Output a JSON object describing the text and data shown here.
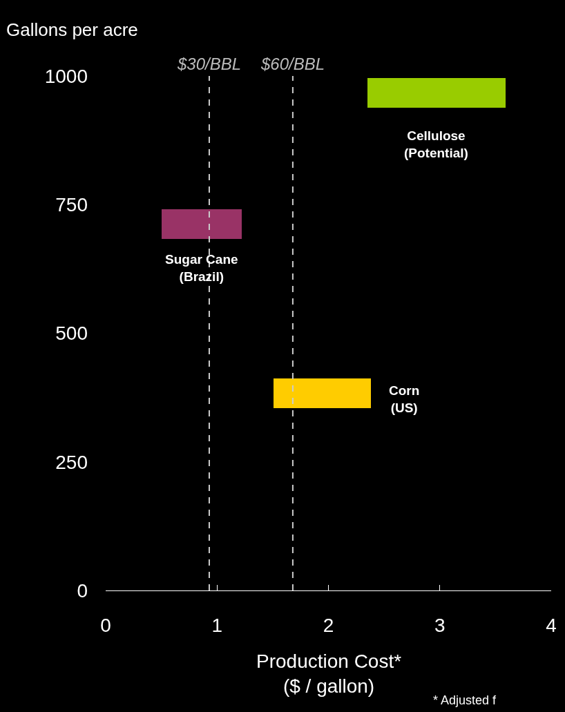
{
  "chart_data": {
    "type": "bar",
    "orientation": "horizontal",
    "xlabel": "Production Cost*\n($ / gallon)",
    "ylabel": "Gallons per acre",
    "xlim": [
      0,
      4
    ],
    "xticks": [
      0,
      1,
      2,
      3,
      4
    ],
    "ylim": [
      0,
      1000
    ],
    "yticks": [
      0,
      250,
      500,
      750,
      1000
    ],
    "grid": false,
    "series": [
      {
        "color": "#993366",
        "x": [
          712
        ],
        "base": [
          0.5
        ],
        "values": [
          0.72
        ]
      },
      {
        "color": "#ffcc00",
        "x": [
          383
        ],
        "base": [
          1.51
        ],
        "values": [
          0.87
        ]
      },
      {
        "color": "#99cc00",
        "x": [
          967
        ],
        "base": [
          2.35
        ],
        "values": [
          1.24
        ]
      }
    ],
    "ref_lines": [
      {
        "axis": "x",
        "value": 0.93,
        "label": "$30/BBL",
        "color": "#cccccc",
        "line_style": "dashed"
      },
      {
        "axis": "x",
        "value": 1.68,
        "label": "$60/BBL",
        "color": "#cccccc",
        "line_style": "dashed"
      }
    ],
    "annotations": [
      "Sugar Cane\n(Brazil)",
      "Corn\n(US)",
      "Cellulose\n(Potential)",
      "* Adjusted f"
    ]
  }
}
